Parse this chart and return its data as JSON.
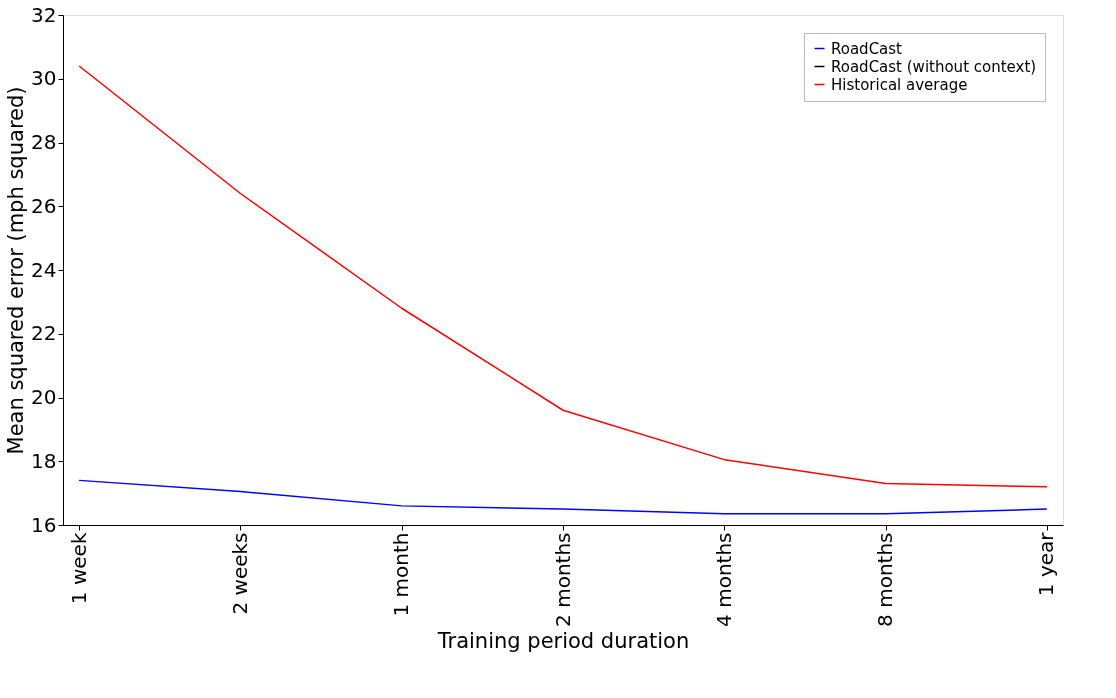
{
  "chart_data": {
    "type": "line",
    "xlabel": "Training period duration",
    "ylabel": "Mean squared error (mph squared)",
    "categories": [
      "1 week",
      "2 weeks",
      "1 month",
      "2 months",
      "4 months",
      "8 months",
      "1 year"
    ],
    "ylim": [
      16,
      32
    ],
    "yticks": [
      16,
      18,
      20,
      22,
      24,
      26,
      28,
      30,
      32
    ],
    "grid": false,
    "legend": "top right",
    "marker": "none",
    "line_style": "solid",
    "series": [
      {
        "name": "RoadCast",
        "color": "#0000ff",
        "values": [
          17.4,
          17.05,
          16.6,
          16.5,
          16.35,
          16.35,
          16.5
        ]
      },
      {
        "name": "RoadCast (without context)",
        "color": "#000000",
        "values": [
          null,
          null,
          null,
          null,
          null,
          null,
          null
        ]
      },
      {
        "name": "Historical average",
        "color": "#ff0000",
        "values": [
          30.4,
          26.4,
          22.8,
          19.6,
          18.05,
          17.3,
          17.2
        ]
      }
    ]
  }
}
